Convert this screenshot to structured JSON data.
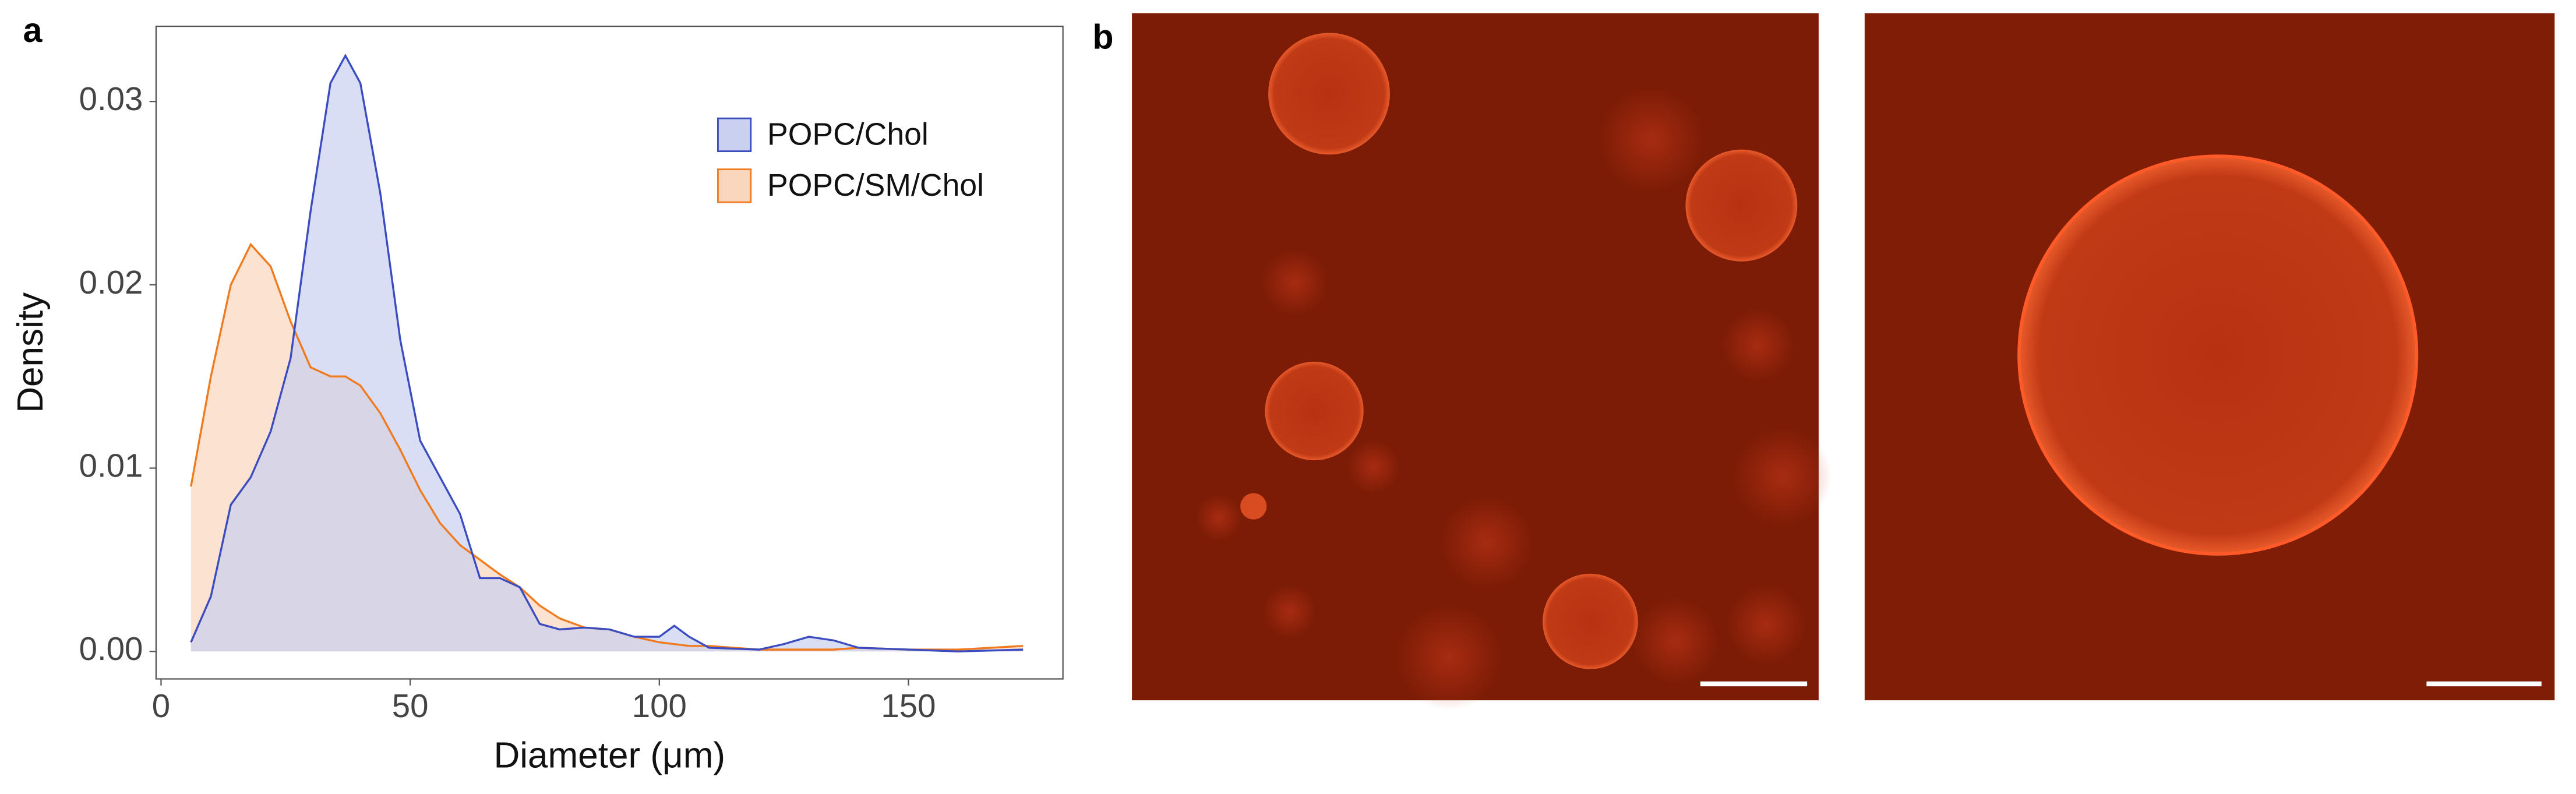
{
  "panel_labels": [
    "a",
    "b"
  ],
  "chart_data": {
    "type": "density",
    "x_label": "Diameter (μm)",
    "y_label": "Density",
    "xlim": [
      -1,
      181
    ],
    "ylim": [
      -0.0015,
      0.0341
    ],
    "xticks": [
      0,
      50,
      100,
      150
    ],
    "yticks": [
      {
        "value": 0,
        "label": "0.00"
      },
      0.01,
      0.02,
      0.03
    ],
    "legend": "top-right",
    "x": [
      6,
      10,
      14,
      18,
      22,
      26,
      30,
      34,
      37,
      40,
      44,
      48,
      52,
      56,
      60,
      64,
      68,
      72,
      76,
      80,
      85,
      90,
      95,
      100,
      103,
      106,
      110,
      120,
      125,
      130,
      135,
      140,
      150,
      160,
      173
    ],
    "series": [
      {
        "name": "POPC/Chol",
        "color": "#3b4cc0",
        "fill": "#c9d0f0",
        "values": [
          0.0005,
          0.003,
          0.008,
          0.0095,
          0.012,
          0.016,
          0.024,
          0.031,
          0.0325,
          0.031,
          0.025,
          0.017,
          0.0115,
          0.0095,
          0.0075,
          0.004,
          0.004,
          0.0035,
          0.0015,
          0.0012,
          0.0013,
          0.0012,
          0.0008,
          0.0008,
          0.0014,
          0.0008,
          0.0002,
          0.0001,
          0.0004,
          0.0008,
          0.0006,
          0.0002,
          0.0001,
          0,
          0.0001
        ]
      },
      {
        "name": "POPC/SM/Chol",
        "color": "#f07a1e",
        "fill": "#fad6bd",
        "values": [
          0.009,
          0.015,
          0.02,
          0.0222,
          0.021,
          0.018,
          0.0155,
          0.015,
          0.015,
          0.0145,
          0.013,
          0.011,
          0.0088,
          0.007,
          0.0058,
          0.005,
          0.0042,
          0.0035,
          0.0025,
          0.0018,
          0.0013,
          0.0012,
          0.0008,
          0.0005,
          0.0004,
          0.0003,
          0.0003,
          0.0001,
          0.0001,
          0.0001,
          0.0001,
          0.0002,
          0.0001,
          0.0001,
          0.0003
        ]
      }
    ]
  }
}
